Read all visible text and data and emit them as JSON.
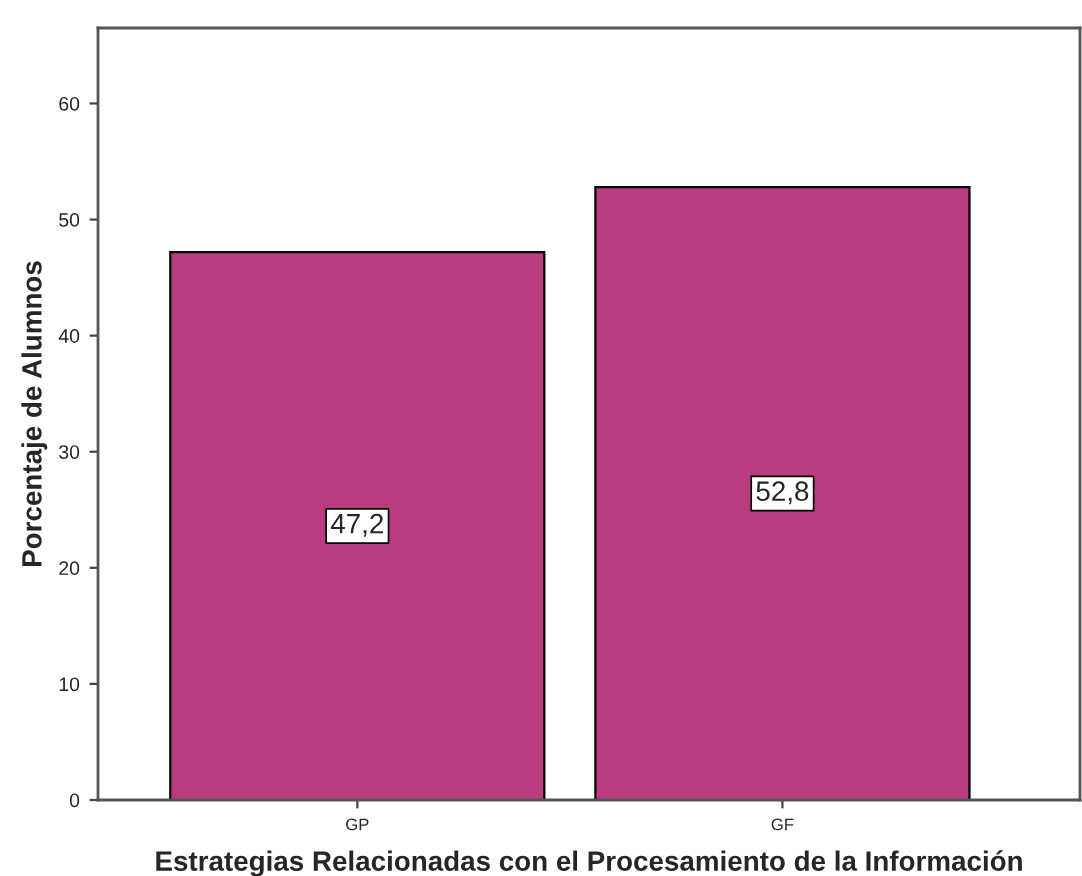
{
  "chart_data": {
    "type": "bar",
    "xlabel": "Estrategias Relacionadas con el Procesamiento de la Información",
    "ylabel": "Porcentaje de Alumnos",
    "categories": [
      "GP",
      "GF"
    ],
    "values": [
      47.2,
      52.8
    ],
    "value_labels": [
      "47,2",
      "52,8"
    ],
    "color": "#b93d7e",
    "ylim": [
      0,
      66.5
    ],
    "yticks": [
      0,
      10,
      20,
      30,
      40,
      50,
      60
    ],
    "grid": false,
    "legend": false
  }
}
